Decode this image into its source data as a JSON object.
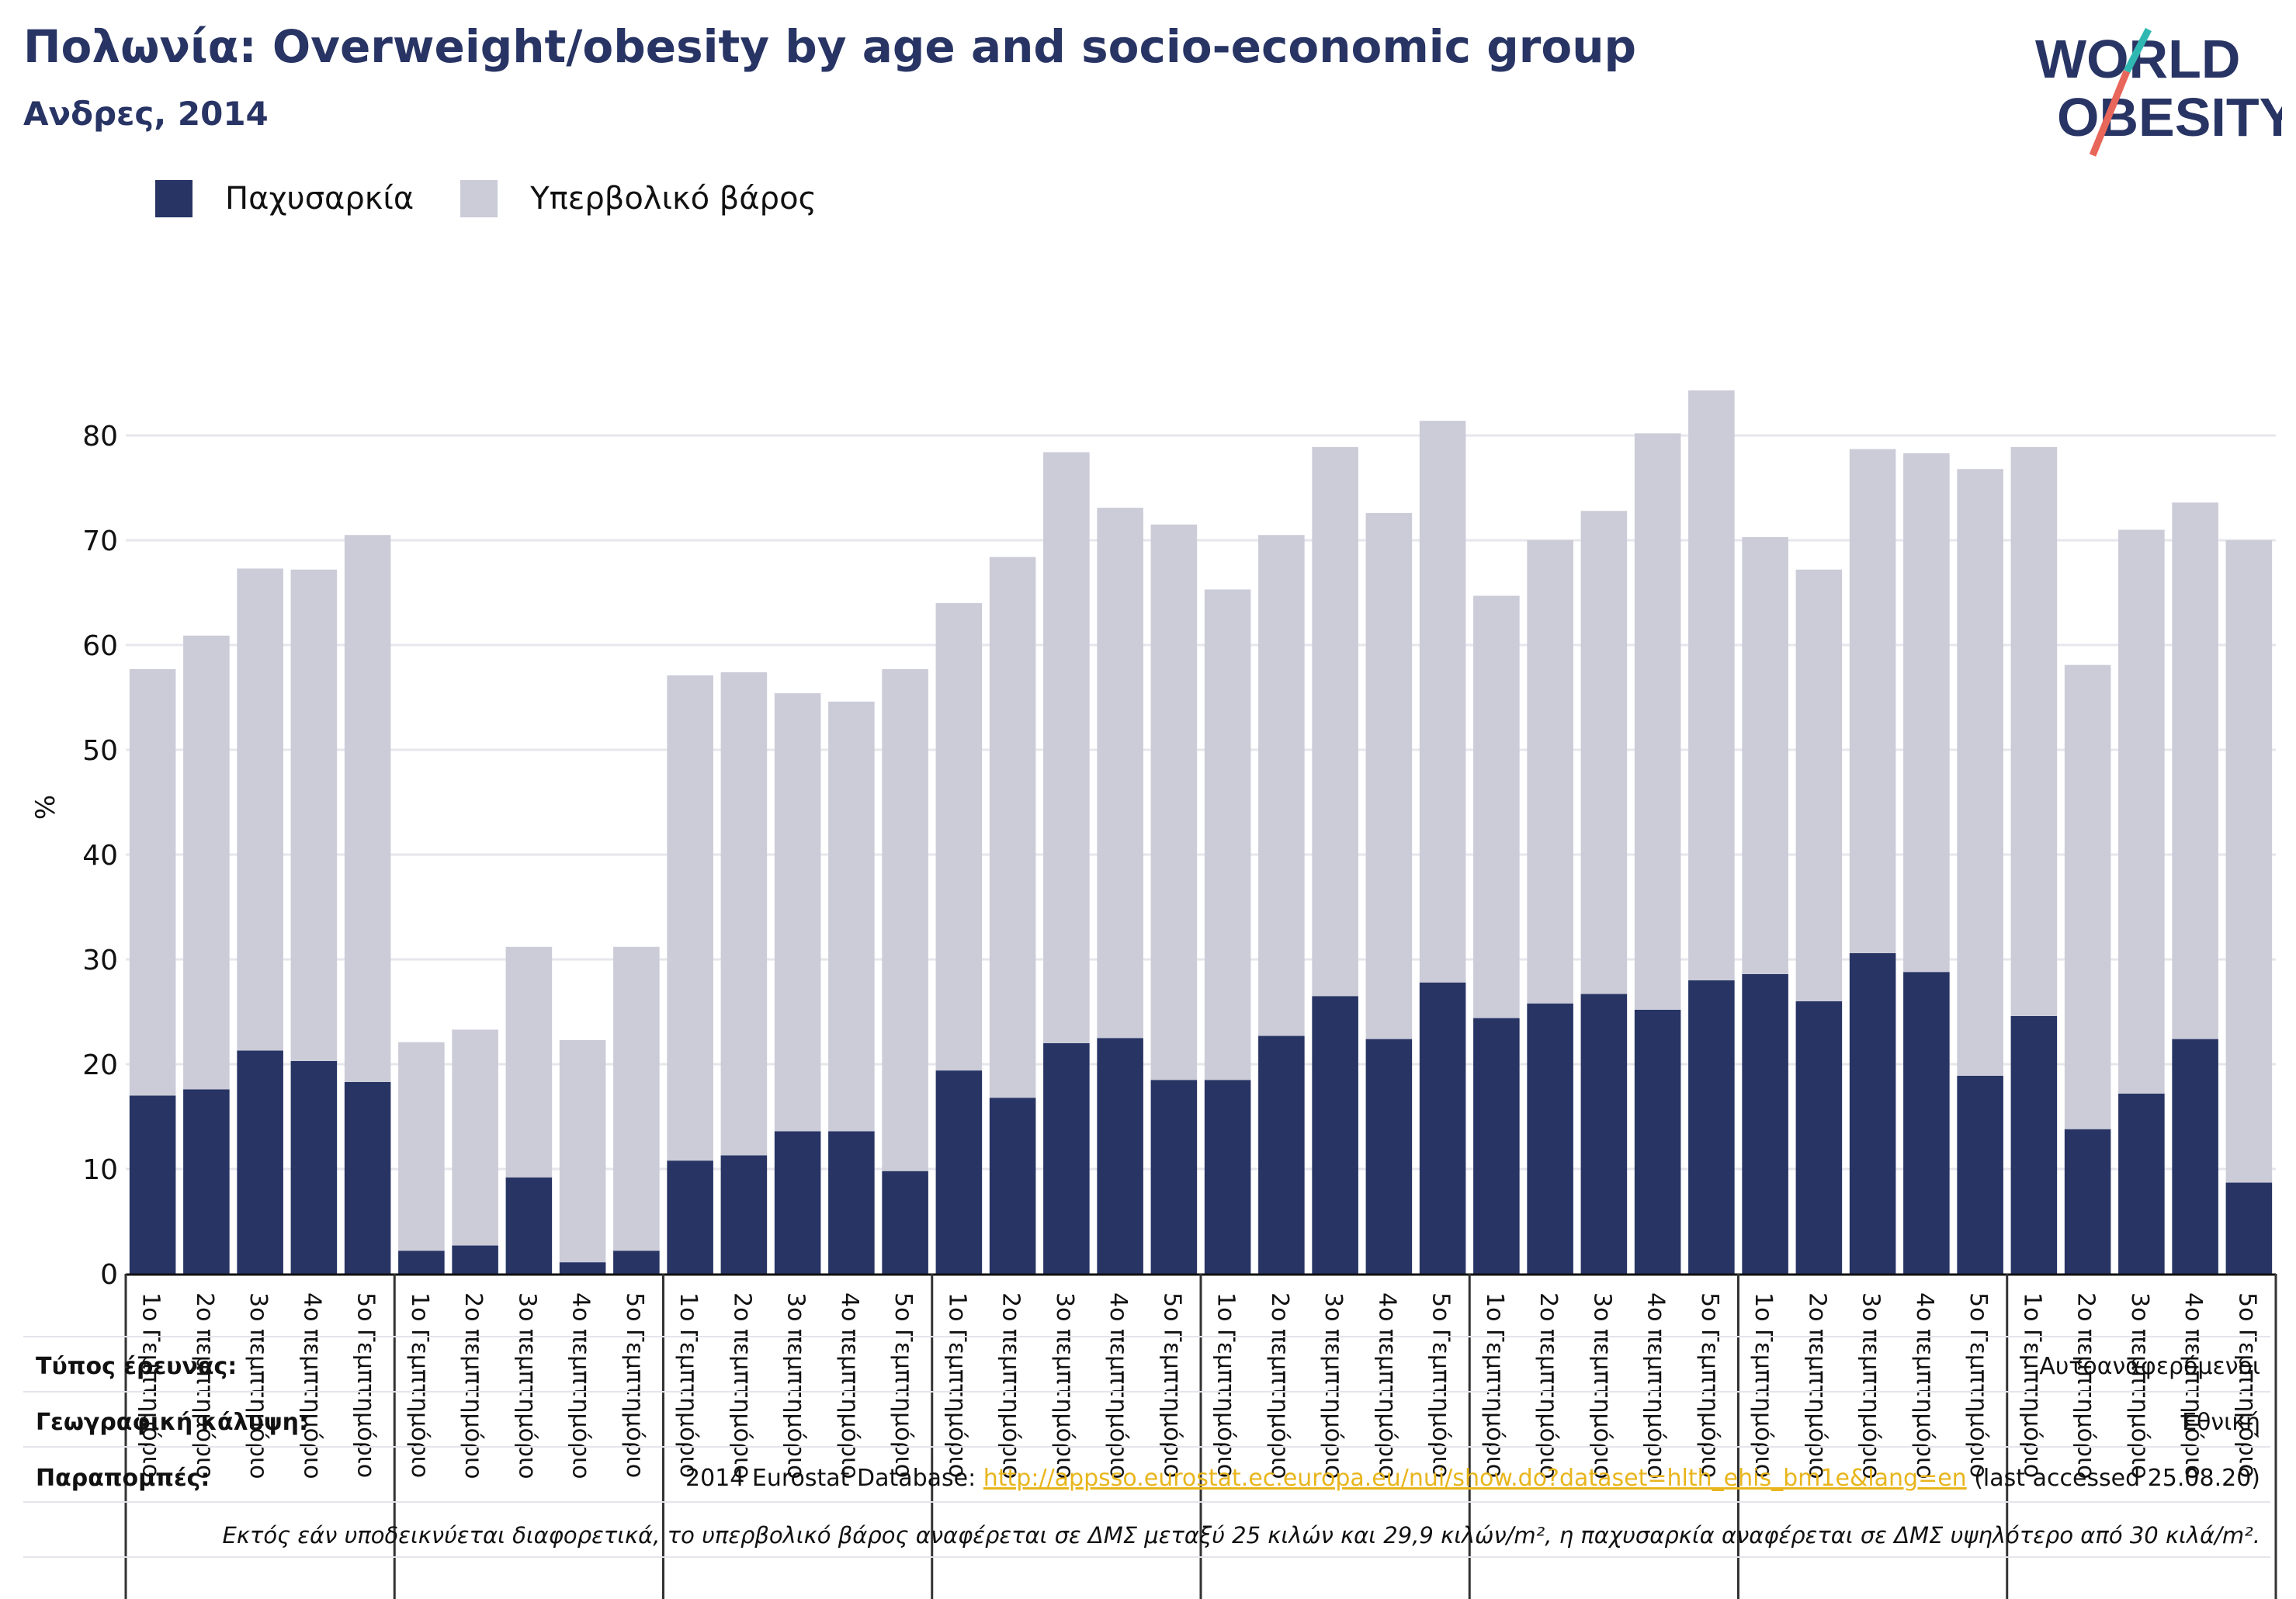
{
  "header": {
    "title": "Πολωνία: Overweight/obesity by age and socio-economic group",
    "subtitle": "Ανδρες, 2014"
  },
  "logo": {
    "line1": "WORLD",
    "line2": "OBESITY"
  },
  "colors": {
    "obesity": "#283464",
    "overweight": "#cbccd8",
    "link": "#e8b51c"
  },
  "chart_data": {
    "type": "bar",
    "stacked": true,
    "ylabel": "%",
    "ylim": [
      0,
      85
    ],
    "yticks": [
      0,
      10,
      20,
      30,
      40,
      50,
      60,
      70,
      80
    ],
    "grid": true,
    "legend_position": "top-left",
    "group_count": 8,
    "categories": [
      "1ο Γεμπτημόριο",
      "2ο πεμπτημόριο",
      "3ο πεμπτημόριο",
      "4ο πεμπτημόριο",
      "5ο Γεμπτημόριο",
      "1ο Γεμπτημόριο",
      "2ο πεμπτημόριο",
      "3ο πεμπτημόριο",
      "4ο πεμπτημόριο",
      "5ο Γεμπτημόριο",
      "1ο Γεμπτημόριο",
      "2ο πεμπτημόριο",
      "3ο πεμπτημόριο",
      "4ο πεμπτημόριο",
      "5ο Γεμπτημόριο",
      "1ο Γεμπτημόριο",
      "2ο πεμπτημόριο",
      "3ο πεμπτημόριο",
      "4ο πεμπτημόριο",
      "5ο Γεμπτημόριο",
      "1ο Γεμπτημόριο",
      "2ο πεμπτημόριο",
      "3ο πεμπτημόριο",
      "4ο πεμπτημόριο",
      "5ο Γεμπτημόριο",
      "1ο Γεμπτημόριο",
      "2ο πεμπτημόριο",
      "3ο πεμπτημόριο",
      "4ο πεμπτημόριο",
      "5ο Γεμπτημόριο",
      "1ο Γεμπτημόριο",
      "2ο πεμπτημόριο",
      "3ο πεμπτημόριο",
      "4ο πεμπτημόριο",
      "5ο Γεμπτημόριο",
      "1ο Γεμπτημόριο",
      "2ο πεμπτημόριο",
      "3ο πεμπτημόριο",
      "4ο πεμπτημόριο",
      "5ο Γεμπτημόριο"
    ],
    "series": [
      {
        "name": "Παχυσαρκία",
        "color": "#283464",
        "values": [
          17.0,
          17.6,
          21.3,
          20.3,
          18.3,
          2.2,
          2.7,
          9.2,
          1.1,
          2.2,
          10.8,
          11.3,
          13.6,
          13.6,
          9.8,
          19.4,
          16.8,
          22.0,
          22.5,
          18.5,
          18.5,
          22.7,
          26.5,
          22.4,
          27.8,
          24.4,
          25.8,
          26.7,
          25.2,
          28.0,
          28.6,
          26.0,
          30.6,
          28.8,
          18.9,
          24.6,
          13.8,
          17.2,
          22.4,
          8.7
        ]
      },
      {
        "name": "Υπερβολικό βάρος",
        "color": "#cbccd8",
        "values": [
          40.7,
          43.3,
          46.0,
          46.9,
          52.2,
          19.9,
          20.6,
          22.0,
          21.2,
          29.0,
          46.3,
          46.1,
          41.8,
          41.0,
          47.9,
          44.6,
          51.6,
          56.4,
          50.6,
          53.0,
          46.8,
          47.8,
          52.4,
          50.2,
          53.6,
          40.3,
          44.2,
          46.1,
          55.0,
          56.3,
          41.7,
          41.2,
          48.1,
          49.5,
          57.9,
          54.3,
          44.3,
          53.8,
          51.2,
          61.3
        ]
      }
    ]
  },
  "footer": {
    "survey_label": "Τύπος έρευνας:",
    "survey_value": "Αυτοαναφερόμενοι",
    "coverage_label": "Γεωγραφική κάλυψη:",
    "coverage_value": "Εθνική",
    "refs_label": "Παραπομπές:",
    "refs_prefix": "2014 Eurostat Database: ",
    "refs_link": "http://appsso.eurostat.ec.europa.eu/nui/show.do?dataset=hlth_ehis_bm1e&lang=en",
    "refs_suffix": " (last accessed 25.08.20)",
    "note": "Εκτός εάν υποδεικνύεται διαφορετικά, το υπερβολικό βάρος αναφέρεται σε ΔΜΣ μεταξύ 25 κιλών και 29,9 κιλών/m², η παχυσαρκία αναφέρεται σε ΔΜΣ υψηλότερο από 30 κιλά/m²."
  }
}
